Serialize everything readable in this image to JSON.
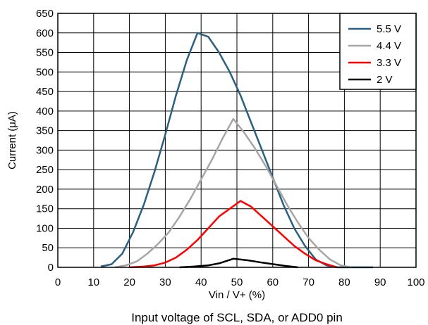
{
  "chart_data": {
    "type": "line",
    "xlabel": "Vin / V+ (%)",
    "ylabel": "Current (μA)",
    "caption": "Input voltage of SCL, SDA, or ADD0 pin",
    "xlim": [
      0,
      100
    ],
    "ylim": [
      0,
      650
    ],
    "xticks": [
      "0",
      "10",
      "20",
      "30",
      "40",
      "50",
      "60",
      "70",
      "80",
      "90",
      "100"
    ],
    "yticks": [
      "0",
      "50",
      "100",
      "150",
      "200",
      "250",
      "300",
      "350",
      "400",
      "450",
      "500",
      "550",
      "600",
      "650"
    ],
    "grid": true,
    "legend_position": "top-right",
    "series": [
      {
        "name": "5.5 V",
        "color": "#2b5f7f",
        "x": [
          12,
          15,
          18,
          21,
          24,
          27,
          30,
          33,
          36,
          39,
          42,
          45,
          48,
          51,
          54,
          57,
          60,
          63,
          66,
          69,
          72,
          75,
          78,
          81,
          84,
          88
        ],
        "y": [
          2,
          8,
          35,
          90,
          160,
          245,
          340,
          440,
          530,
          600,
          590,
          550,
          500,
          440,
          370,
          300,
          230,
          160,
          100,
          55,
          20,
          5,
          0,
          0,
          0,
          0
        ]
      },
      {
        "name": "4.4 V",
        "color": "#a6a6a6",
        "x": [
          16,
          19,
          22,
          25,
          28,
          31,
          34,
          37,
          40,
          43,
          46,
          49,
          52,
          55,
          58,
          61,
          64,
          67,
          70,
          73,
          76,
          79,
          82
        ],
        "y": [
          0,
          5,
          15,
          35,
          60,
          90,
          130,
          175,
          225,
          275,
          330,
          380,
          345,
          305,
          260,
          210,
          160,
          115,
          75,
          45,
          20,
          5,
          0
        ]
      },
      {
        "name": "3.3 V",
        "color": "#ff0000",
        "x": [
          20,
          24,
          27,
          30,
          33,
          36,
          39,
          42,
          45,
          48,
          51,
          54,
          57,
          60,
          63,
          66,
          69,
          72,
          75,
          78
        ],
        "y": [
          0,
          2,
          5,
          12,
          25,
          45,
          70,
          100,
          130,
          150,
          170,
          155,
          130,
          105,
          80,
          55,
          35,
          18,
          8,
          0
        ]
      },
      {
        "name": "2 V",
        "color": "#000000",
        "x": [
          34,
          38,
          42,
          45,
          49,
          53,
          57,
          61,
          64,
          67
        ],
        "y": [
          0,
          2,
          5,
          10,
          22,
          18,
          12,
          7,
          3,
          0
        ]
      }
    ]
  }
}
